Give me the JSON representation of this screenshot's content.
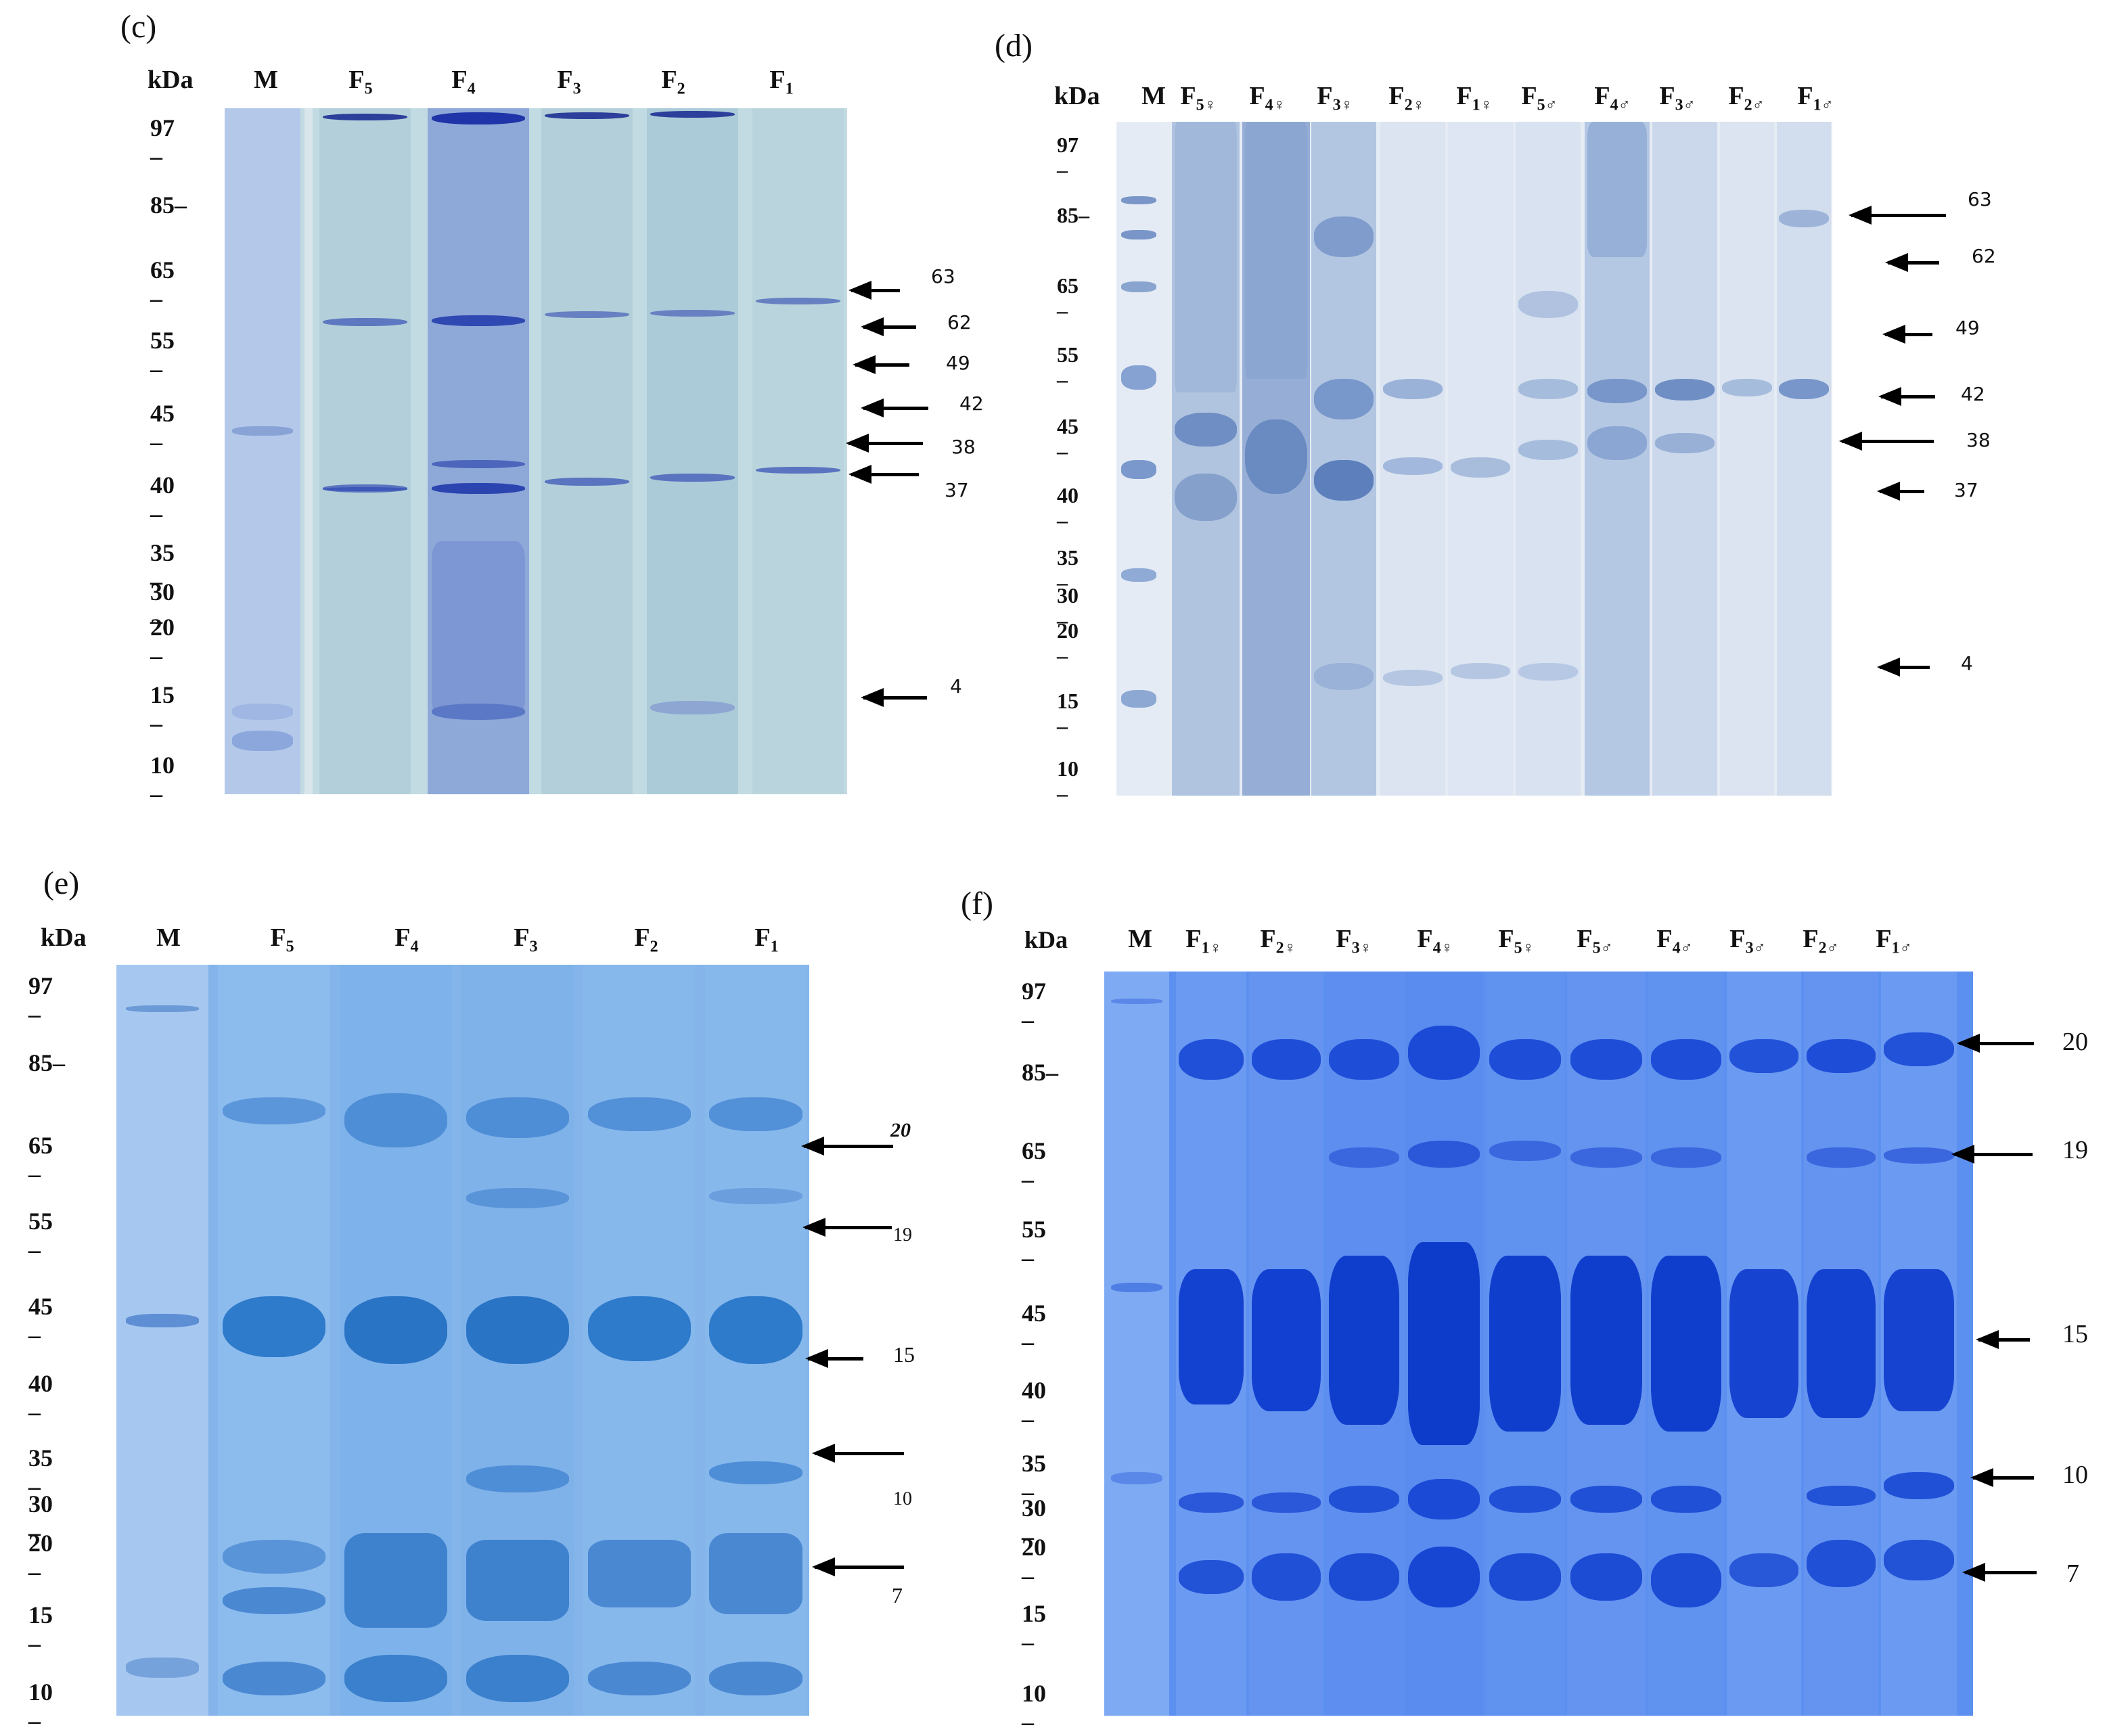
{
  "panels": {
    "c": {
      "label": "(c)",
      "kda": "kDa",
      "lanes": [
        {
          "name": "M",
          "sub": ""
        },
        {
          "name": "F",
          "sub": "5"
        },
        {
          "name": "F",
          "sub": "4"
        },
        {
          "name": "F",
          "sub": "3"
        },
        {
          "name": "F",
          "sub": "2"
        },
        {
          "name": "F",
          "sub": "1"
        }
      ],
      "markers": [
        "97",
        "85",
        "65",
        "55",
        "45",
        "40",
        "35",
        "30",
        "20",
        "15",
        "10"
      ],
      "arrow_labels": [
        "63",
        "62",
        "49",
        "42",
        "38",
        "37",
        "4"
      ],
      "colors": {
        "gel": "#bcd6de",
        "band": "#3d58b8",
        "marker_lane": "#b3c9e8"
      }
    },
    "d": {
      "label": "(d)",
      "kda": "kDa",
      "lanes": [
        {
          "name": "M",
          "sub": ""
        },
        {
          "name": "F",
          "sub": "5♀"
        },
        {
          "name": "F",
          "sub": "4♀"
        },
        {
          "name": "F",
          "sub": "3♀"
        },
        {
          "name": "F",
          "sub": "2♀"
        },
        {
          "name": "F",
          "sub": "1♀"
        },
        {
          "name": "F",
          "sub": "5♂"
        },
        {
          "name": "F",
          "sub": "4♂"
        },
        {
          "name": "F",
          "sub": "3♂"
        },
        {
          "name": "F",
          "sub": "2♂"
        },
        {
          "name": "F",
          "sub": "1♂"
        }
      ],
      "markers": [
        "97",
        "85",
        "65",
        "55",
        "45",
        "40",
        "35",
        "30",
        "20",
        "15",
        "10"
      ],
      "arrow_labels": [
        "63",
        "62",
        "49",
        "42",
        "38",
        "37",
        "4"
      ],
      "colors": {
        "gel": "#e2e8f2",
        "band": "#4a6fae"
      }
    },
    "e": {
      "label": "(e)",
      "kda": "kDa",
      "lanes": [
        {
          "name": "M",
          "sub": ""
        },
        {
          "name": "F",
          "sub": "5"
        },
        {
          "name": "F",
          "sub": "4"
        },
        {
          "name": "F",
          "sub": "3"
        },
        {
          "name": "F",
          "sub": "2"
        },
        {
          "name": "F",
          "sub": "1"
        }
      ],
      "markers": [
        "97",
        "85",
        "65",
        "55",
        "45",
        "40",
        "35",
        "30",
        "20",
        "15",
        "10"
      ],
      "arrow_labels": [
        "20",
        "19",
        "15",
        "10",
        "7"
      ],
      "colors": {
        "gel": "#7fb0e6",
        "band": "#2e78c8"
      }
    },
    "f": {
      "label": "(f)",
      "kda": "kDa",
      "lanes": [
        {
          "name": "M",
          "sub": ""
        },
        {
          "name": "F",
          "sub": "1♀"
        },
        {
          "name": "F",
          "sub": "2♀"
        },
        {
          "name": "F",
          "sub": "3♀"
        },
        {
          "name": "F",
          "sub": "4♀"
        },
        {
          "name": "F",
          "sub": "5♀"
        },
        {
          "name": "F",
          "sub": "5♂"
        },
        {
          "name": "F",
          "sub": "4♂"
        },
        {
          "name": "F",
          "sub": "3♂"
        },
        {
          "name": "F",
          "sub": "2♂"
        },
        {
          "name": "F",
          "sub": "1♂"
        }
      ],
      "markers": [
        "97",
        "85",
        "65",
        "55",
        "45",
        "40",
        "35",
        "30",
        "20",
        "15",
        "10"
      ],
      "arrow_labels": [
        "20",
        "19",
        "15",
        "10",
        "7"
      ],
      "colors": {
        "gel": "#5a8ef0",
        "band": "#1846d6"
      }
    }
  }
}
